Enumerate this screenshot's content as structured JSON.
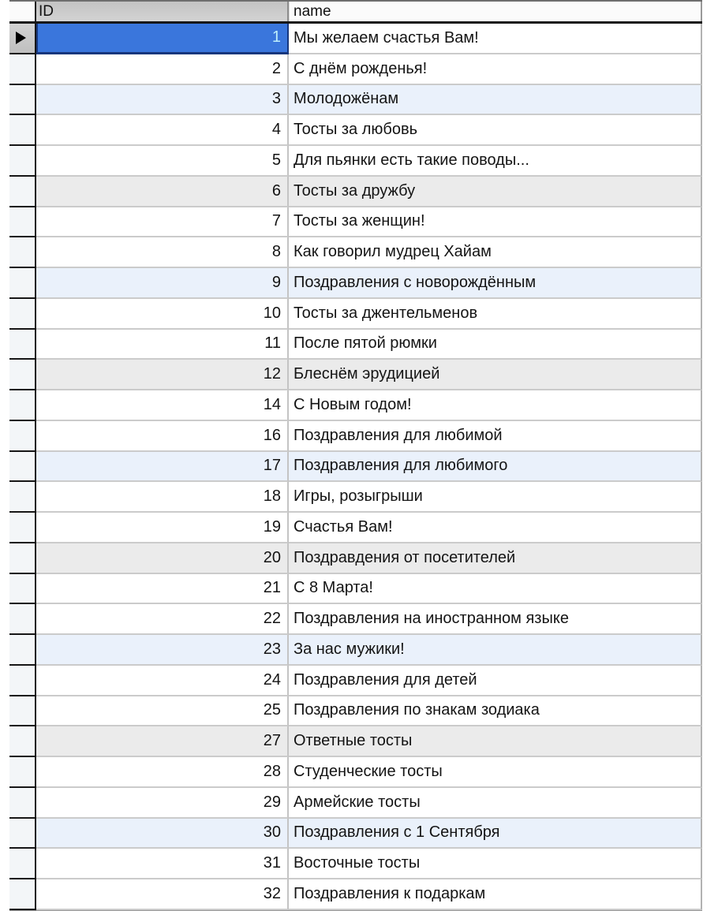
{
  "app": {
    "view": "database-table-datasheet",
    "current_record_marker": "right-arrow"
  },
  "table": {
    "columns": [
      {
        "label": "ID"
      },
      {
        "label": "name"
      }
    ],
    "selected_record_id": "1",
    "rows": [
      {
        "id": "1",
        "name": "Мы желаем счастья Вам!",
        "tint": "white",
        "selected": true
      },
      {
        "id": "2",
        "name": "С днём рожденья!",
        "tint": "white",
        "selected": false
      },
      {
        "id": "3",
        "name": "Молодожёнам",
        "tint": "blue",
        "selected": false
      },
      {
        "id": "4",
        "name": "Тосты за любовь",
        "tint": "white",
        "selected": false
      },
      {
        "id": "5",
        "name": "Для пьянки есть такие поводы...",
        "tint": "white",
        "selected": false
      },
      {
        "id": "6",
        "name": "Тосты за дружбу",
        "tint": "gray",
        "selected": false
      },
      {
        "id": "7",
        "name": "Тосты за женщин!",
        "tint": "white",
        "selected": false
      },
      {
        "id": "8",
        "name": "Как говорил мудрец Хайам",
        "tint": "white",
        "selected": false
      },
      {
        "id": "9",
        "name": "Поздравления с новорождённым",
        "tint": "blue",
        "selected": false
      },
      {
        "id": "10",
        "name": "Тосты за джентельменов",
        "tint": "white",
        "selected": false
      },
      {
        "id": "11",
        "name": "После пятой рюмки",
        "tint": "white",
        "selected": false
      },
      {
        "id": "12",
        "name": "Блеснём эрудицией",
        "tint": "gray",
        "selected": false
      },
      {
        "id": "14",
        "name": "С Новым годом!",
        "tint": "white",
        "selected": false
      },
      {
        "id": "16",
        "name": "Поздравления для любимой",
        "tint": "white",
        "selected": false
      },
      {
        "id": "17",
        "name": "Поздравления для любимого",
        "tint": "blue",
        "selected": false
      },
      {
        "id": "18",
        "name": "Игры, розыгрыши",
        "tint": "white",
        "selected": false
      },
      {
        "id": "19",
        "name": "Счастья Вам!",
        "tint": "white",
        "selected": false
      },
      {
        "id": "20",
        "name": "Поздравдения от посетителей",
        "tint": "gray",
        "selected": false
      },
      {
        "id": "21",
        "name": "С 8 Марта!",
        "tint": "white",
        "selected": false
      },
      {
        "id": "22",
        "name": "Поздравления на иностранном языке",
        "tint": "white",
        "selected": false
      },
      {
        "id": "23",
        "name": "За нас мужики!",
        "tint": "blue",
        "selected": false
      },
      {
        "id": "24",
        "name": "Поздравления для детей",
        "tint": "white",
        "selected": false
      },
      {
        "id": "25",
        "name": "Поздравления по знакам зодиака",
        "tint": "white",
        "selected": false
      },
      {
        "id": "27",
        "name": "Ответные тосты",
        "tint": "gray",
        "selected": false
      },
      {
        "id": "28",
        "name": "Студенческие тосты",
        "tint": "white",
        "selected": false
      },
      {
        "id": "29",
        "name": "Армейские тосты",
        "tint": "white",
        "selected": false
      },
      {
        "id": "30",
        "name": "Поздравления с 1 Сентября",
        "tint": "blue",
        "selected": false
      },
      {
        "id": "31",
        "name": "Восточные тосты",
        "tint": "white",
        "selected": false
      },
      {
        "id": "32",
        "name": "Поздравления к подаркам",
        "tint": "white",
        "selected": false
      }
    ]
  },
  "colors": {
    "selected_cell_bg": "#3a76dc",
    "selected_cell_text": "#bfeffb",
    "row_tint_blue": "#eaf1fb",
    "row_tint_gray": "#ebebeb",
    "id_header_bg": "#c8c8c8",
    "grid_line": "#cbcbcb",
    "gutter_border": "#161616"
  }
}
